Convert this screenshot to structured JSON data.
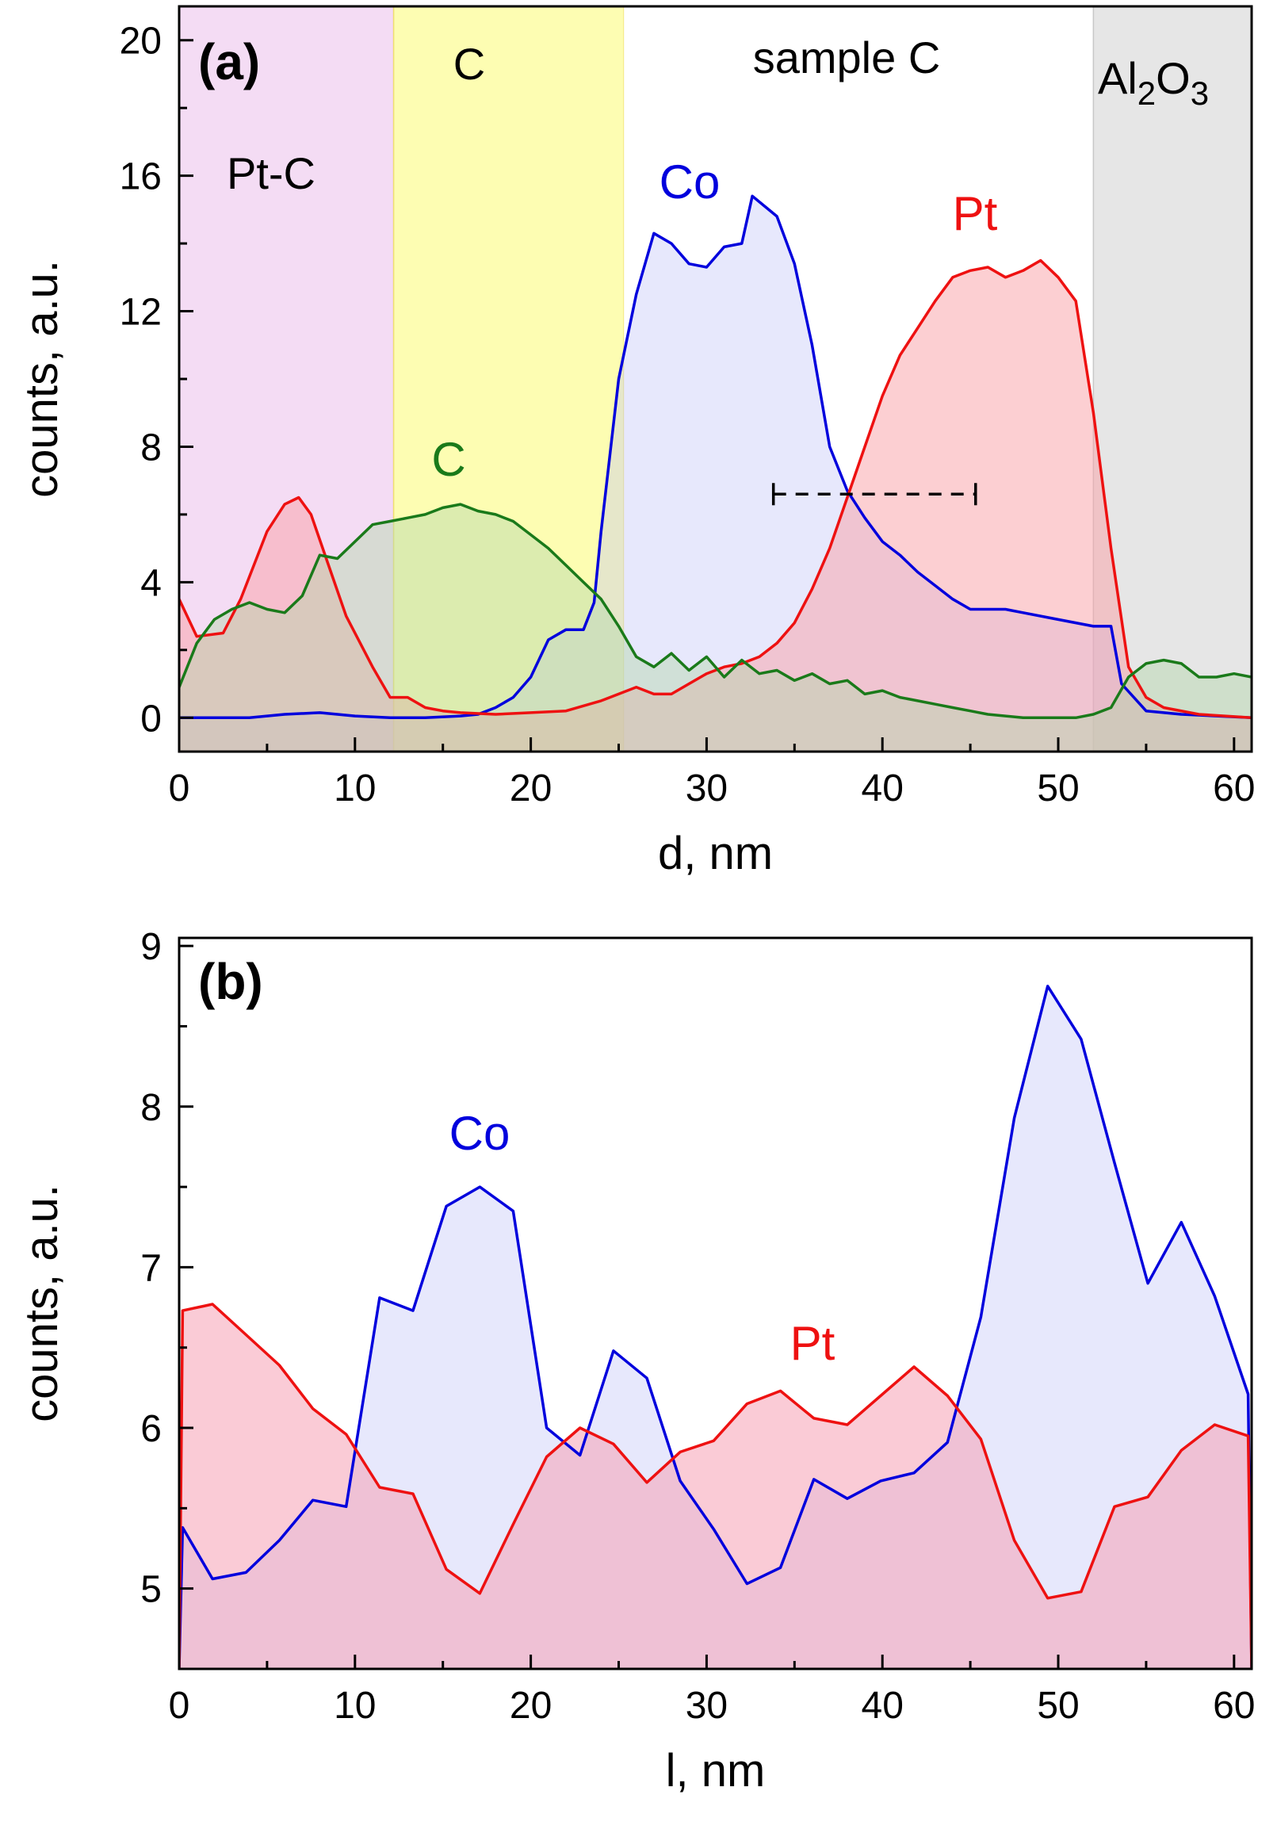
{
  "chart_data": [
    {
      "type": "area",
      "panel_label": "(a)",
      "xlabel": "d, nm",
      "ylabel": "counts, a.u.",
      "xlim": [
        0,
        61
      ],
      "ylim": [
        -1,
        21
      ],
      "xticks": [
        0,
        10,
        20,
        30,
        40,
        50,
        60
      ],
      "yticks": [
        0,
        4,
        8,
        12,
        16,
        20
      ],
      "regions": [
        {
          "label": "Pt-C",
          "x0": 0,
          "x1": 12.2,
          "color": "#f4dcf4"
        },
        {
          "label": "C",
          "x0": 12.2,
          "x1": 25.3,
          "color": "#fdfdb2"
        },
        {
          "label": "sample C",
          "x0": 25.3,
          "x1": 52.0,
          "color": "#ffffff"
        },
        {
          "label": "Al2O3",
          "label_main": "Al",
          "label_sub1": "2",
          "label_mid": "O",
          "label_sub2": "3",
          "x0": 52.0,
          "x1": 61,
          "color": "#e6e6e6"
        }
      ],
      "annotation": {
        "type": "dashed-range",
        "x0": 33.8,
        "x1": 45.3,
        "y": 6.6
      },
      "series": [
        {
          "name": "Co",
          "color": "#0000dd",
          "fill": "rgba(185,190,245,0.35)",
          "x": [
            0,
            2,
            4,
            6,
            8,
            10,
            12,
            14,
            16,
            17,
            18,
            19,
            20,
            21,
            22,
            23,
            23.6,
            24,
            25,
            26,
            27,
            28,
            29,
            30,
            31,
            32,
            32.6,
            34,
            35,
            36,
            37,
            38,
            39,
            40,
            41,
            42,
            43,
            44,
            45,
            46,
            47,
            48,
            50,
            51,
            52,
            53,
            53.6,
            55,
            57,
            61
          ],
          "y": [
            0.0,
            0.0,
            0.0,
            0.1,
            0.15,
            0.05,
            0.0,
            0.0,
            0.05,
            0.1,
            0.3,
            0.6,
            1.2,
            2.3,
            2.6,
            2.6,
            3.4,
            5.5,
            10.0,
            12.5,
            14.3,
            14.0,
            13.4,
            13.3,
            13.9,
            14.0,
            15.4,
            14.8,
            13.4,
            11.0,
            8.0,
            6.7,
            5.9,
            5.2,
            4.8,
            4.3,
            3.9,
            3.5,
            3.2,
            3.2,
            3.2,
            3.1,
            2.9,
            2.8,
            2.7,
            2.7,
            1.0,
            0.2,
            0.1,
            0.0
          ]
        },
        {
          "name": "Pt",
          "color": "#ee1111",
          "fill": "rgba(250,160,165,0.5)",
          "x": [
            0,
            1,
            2.5,
            3.5,
            5,
            6,
            6.8,
            7.5,
            8.5,
            9.5,
            11,
            12,
            13,
            14,
            15,
            16,
            18,
            20,
            22,
            24,
            26,
            27,
            28,
            29,
            30,
            31,
            32,
            33,
            34,
            35,
            36,
            37,
            38,
            39,
            40,
            41,
            42,
            43,
            44,
            45,
            46,
            47,
            48,
            49,
            50,
            51,
            52,
            53,
            54,
            55,
            56,
            58,
            61
          ],
          "y": [
            3.5,
            2.4,
            2.5,
            3.5,
            5.5,
            6.3,
            6.5,
            6.0,
            4.5,
            3.0,
            1.5,
            0.6,
            0.6,
            0.3,
            0.2,
            0.15,
            0.1,
            0.15,
            0.2,
            0.5,
            0.9,
            0.7,
            0.7,
            1.0,
            1.3,
            1.5,
            1.6,
            1.8,
            2.2,
            2.8,
            3.8,
            5.0,
            6.5,
            8.0,
            9.5,
            10.7,
            11.5,
            12.3,
            13.0,
            13.2,
            13.3,
            13.0,
            13.2,
            13.5,
            13.0,
            12.3,
            9.0,
            5.0,
            1.5,
            0.6,
            0.3,
            0.1,
            0.0
          ]
        },
        {
          "name": "C",
          "color": "#1a7a1a",
          "fill": "rgba(180,215,170,0.45)",
          "x": [
            0,
            1,
            2,
            3,
            4,
            5,
            6,
            7,
            8,
            9,
            10,
            11,
            12,
            13,
            14,
            15,
            16,
            17,
            18,
            19,
            20,
            21,
            22,
            23,
            24,
            25,
            26,
            27,
            28,
            29,
            30,
            31,
            32,
            33,
            34,
            35,
            36,
            37,
            38,
            39,
            40,
            41,
            42,
            43,
            44,
            45,
            46,
            47,
            48,
            49,
            50,
            51,
            52,
            53,
            54,
            55,
            56,
            57,
            58,
            59,
            60,
            61
          ],
          "y": [
            0.9,
            2.2,
            2.9,
            3.2,
            3.4,
            3.2,
            3.1,
            3.6,
            4.8,
            4.7,
            5.2,
            5.7,
            5.8,
            5.9,
            6.0,
            6.2,
            6.3,
            6.1,
            6.0,
            5.8,
            5.4,
            5.0,
            4.5,
            4.0,
            3.5,
            2.7,
            1.8,
            1.5,
            1.9,
            1.4,
            1.8,
            1.2,
            1.7,
            1.3,
            1.4,
            1.1,
            1.3,
            1.0,
            1.1,
            0.7,
            0.8,
            0.6,
            0.5,
            0.4,
            0.3,
            0.2,
            0.1,
            0.05,
            0.0,
            0.0,
            0.0,
            0.0,
            0.1,
            0.3,
            1.2,
            1.6,
            1.7,
            1.6,
            1.2,
            1.2,
            1.3,
            1.2
          ]
        }
      ]
    },
    {
      "type": "area",
      "panel_label": "(b)",
      "xlabel": "l, nm",
      "ylabel": "counts, a.u.",
      "xlim": [
        0,
        61
      ],
      "ylim": [
        4.5,
        9.05
      ],
      "xticks": [
        0,
        10,
        20,
        30,
        40,
        50,
        60
      ],
      "yticks": [
        5,
        6,
        7,
        8,
        9
      ],
      "series": [
        {
          "name": "Co",
          "color": "#0000dd",
          "fill": "rgba(185,190,245,0.35)",
          "x": [
            0,
            0.2,
            1.9,
            3.8,
            5.7,
            7.6,
            9.5,
            11.4,
            13.3,
            15.2,
            17.1,
            19.0,
            20.9,
            22.8,
            24.7,
            26.6,
            28.5,
            30.4,
            32.3,
            34.2,
            36.1,
            38.0,
            39.9,
            41.8,
            43.7,
            45.6,
            47.5,
            49.4,
            51.3,
            53.2,
            55.1,
            57.0,
            58.9,
            60.8,
            61
          ],
          "y": [
            4.5,
            5.38,
            5.06,
            5.1,
            5.3,
            5.55,
            5.51,
            6.81,
            6.73,
            7.38,
            7.5,
            7.35,
            6.0,
            5.83,
            6.48,
            6.31,
            5.67,
            5.37,
            5.03,
            5.13,
            5.68,
            5.56,
            5.67,
            5.72,
            5.91,
            6.69,
            7.93,
            8.75,
            8.42,
            7.65,
            6.9,
            7.28,
            6.82,
            6.21,
            4.5
          ]
        },
        {
          "name": "Pt",
          "color": "#ee1111",
          "fill": "rgba(245,160,180,0.55)",
          "x": [
            0,
            0.2,
            1.9,
            3.8,
            5.7,
            7.6,
            9.5,
            11.4,
            13.3,
            15.2,
            17.1,
            19.0,
            20.9,
            22.8,
            24.7,
            26.6,
            28.5,
            30.4,
            32.3,
            34.2,
            36.1,
            38.0,
            39.9,
            41.8,
            43.7,
            45.6,
            47.5,
            49.4,
            51.3,
            53.2,
            55.1,
            57.0,
            58.9,
            60.8,
            61
          ],
          "y": [
            4.5,
            6.73,
            6.77,
            6.58,
            6.39,
            6.12,
            5.96,
            5.63,
            5.59,
            5.12,
            4.97,
            5.4,
            5.82,
            6.0,
            5.9,
            5.66,
            5.85,
            5.92,
            6.15,
            6.23,
            6.06,
            6.02,
            6.2,
            6.38,
            6.2,
            5.93,
            5.3,
            4.94,
            4.98,
            5.51,
            5.57,
            5.86,
            6.02,
            5.95,
            4.5
          ]
        }
      ]
    }
  ]
}
